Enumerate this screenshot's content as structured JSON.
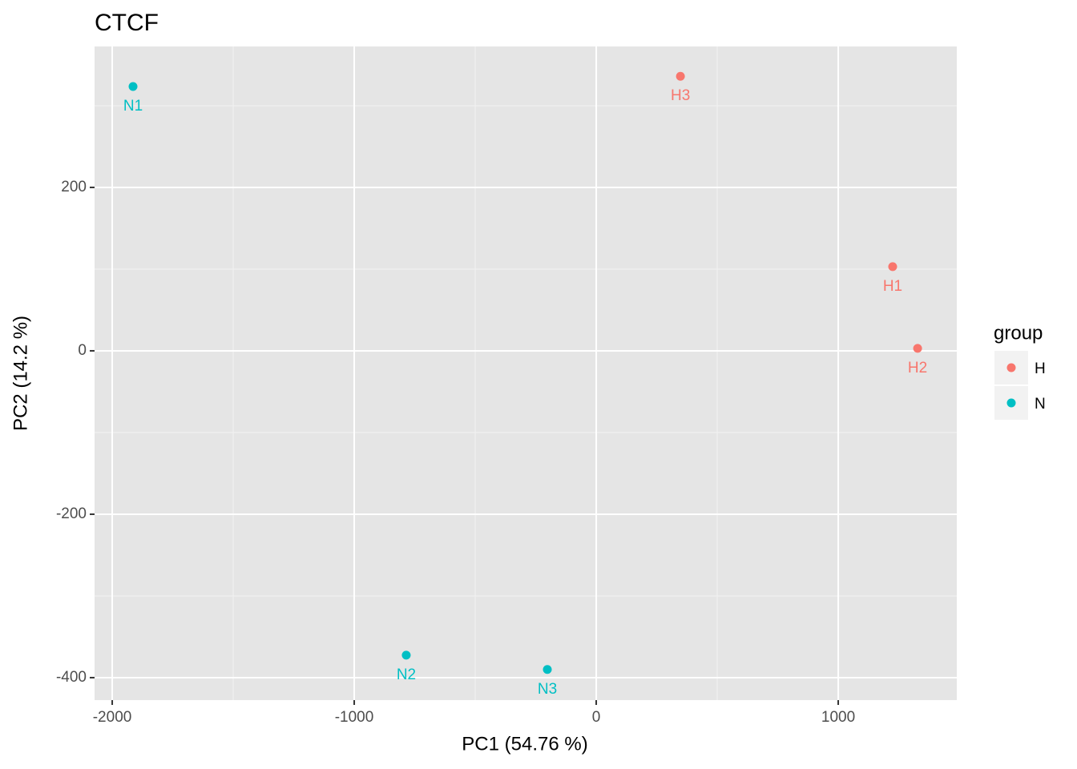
{
  "chart_data": {
    "type": "scatter",
    "title": "CTCF",
    "x_label": "PC1 (54.76 %)",
    "y_label": "PC2 (14.2 %)",
    "xlim": [
      -2073,
      1490
    ],
    "ylim": [
      -427.5,
      372.5
    ],
    "xticks": [
      -2000,
      -1000,
      0,
      1000
    ],
    "yticks": [
      -400,
      -200,
      0,
      200
    ],
    "x_minor_grid": [
      -1500,
      -500,
      500
    ],
    "y_minor_grid": [
      -300,
      -100,
      100,
      300
    ],
    "grid": true,
    "legend_title": "group",
    "legend": "right",
    "series": [
      {
        "name": "H",
        "color": "#F8766D",
        "x": [
          1225,
          1328,
          348
        ],
        "values": [
          103,
          3,
          336
        ],
        "labels": [
          "H1",
          "H2",
          "H3"
        ]
      },
      {
        "name": "N",
        "color": "#00BFC4",
        "x": [
          -1914,
          -785,
          -202
        ],
        "values": [
          323.5,
          -372.5,
          -390
        ],
        "labels": [
          "N1",
          "N2",
          "N3"
        ]
      }
    ]
  }
}
